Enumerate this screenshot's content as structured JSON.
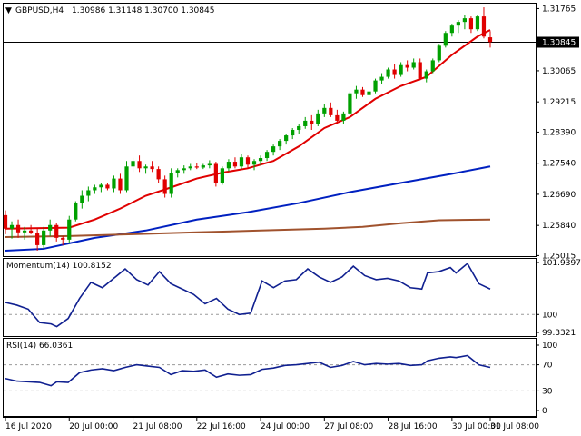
{
  "header": {
    "symbol": "GBPUSD,H4",
    "ohlc": "1.30986 1.31148 1.30700 1.30845"
  },
  "current_price_label": "1.30845",
  "colors": {
    "bull": "#00a000",
    "bear": "#e00000",
    "ma_fast": "#e00000",
    "ma_mid": "#0020c0",
    "ma_slow": "#a0522d",
    "oscillator": "#102090",
    "price_tag_bg": "#000000"
  },
  "chart_data": [
    {
      "type": "candlestick",
      "title": "GBPUSD,H4",
      "ylim": [
        1.25,
        1.319
      ],
      "y_ticks": [
        "1.31765",
        "1.30845",
        "1.30065",
        "1.29215",
        "1.28390",
        "1.27540",
        "1.26690",
        "1.25840",
        "1.25015"
      ],
      "y_tick_values": [
        1.31765,
        1.30845,
        1.30065,
        1.29215,
        1.2839,
        1.2754,
        1.2669,
        1.2584,
        1.25015
      ],
      "current_price": 1.30845,
      "candles": [
        [
          1.2612,
          1.2625,
          1.256,
          1.2575
        ],
        [
          1.2575,
          1.2595,
          1.2548,
          1.2585
        ],
        [
          1.2585,
          1.26,
          1.255,
          1.2565
        ],
        [
          1.2565,
          1.258,
          1.2545,
          1.257
        ],
        [
          1.257,
          1.2585,
          1.256,
          1.2562
        ],
        [
          1.2562,
          1.2575,
          1.2515,
          1.253
        ],
        [
          1.253,
          1.258,
          1.252,
          1.257
        ],
        [
          1.257,
          1.26,
          1.2555,
          1.2585
        ],
        [
          1.2585,
          1.259,
          1.254,
          1.255
        ],
        [
          1.255,
          1.2555,
          1.253,
          1.2545
        ],
        [
          1.2545,
          1.261,
          1.2535,
          1.26
        ],
        [
          1.26,
          1.265,
          1.2595,
          1.2645
        ],
        [
          1.2645,
          1.268,
          1.263,
          1.2665
        ],
        [
          1.2665,
          1.269,
          1.265,
          1.268
        ],
        [
          1.268,
          1.2695,
          1.267,
          1.2688
        ],
        [
          1.2688,
          1.27,
          1.2675,
          1.2695
        ],
        [
          1.2695,
          1.27,
          1.268,
          1.2685
        ],
        [
          1.2685,
          1.272,
          1.2675,
          1.2712
        ],
        [
          1.2712,
          1.2725,
          1.267,
          1.268
        ],
        [
          1.268,
          1.276,
          1.2675,
          1.2745
        ],
        [
          1.2745,
          1.277,
          1.273,
          1.276
        ],
        [
          1.276,
          1.2775,
          1.273,
          1.274
        ],
        [
          1.274,
          1.275,
          1.2725,
          1.2745
        ],
        [
          1.2745,
          1.276,
          1.273,
          1.2738
        ],
        [
          1.2738,
          1.2745,
          1.27,
          1.271
        ],
        [
          1.271,
          1.272,
          1.266,
          1.267
        ],
        [
          1.267,
          1.274,
          1.266,
          1.2728
        ],
        [
          1.2728,
          1.274,
          1.2715,
          1.2735
        ],
        [
          1.2735,
          1.2748,
          1.2725,
          1.274
        ],
        [
          1.274,
          1.2752,
          1.2735,
          1.2745
        ],
        [
          1.2745,
          1.2755,
          1.2738,
          1.2742
        ],
        [
          1.2742,
          1.2752,
          1.2738,
          1.2748
        ],
        [
          1.2748,
          1.2762,
          1.274,
          1.2752
        ],
        [
          1.2752,
          1.2758,
          1.269,
          1.27
        ],
        [
          1.27,
          1.2745,
          1.2695,
          1.274
        ],
        [
          1.274,
          1.2765,
          1.2732,
          1.2758
        ],
        [
          1.2758,
          1.277,
          1.274,
          1.2745
        ],
        [
          1.2745,
          1.2778,
          1.2738,
          1.277
        ],
        [
          1.277,
          1.2775,
          1.274,
          1.275
        ],
        [
          1.275,
          1.2765,
          1.2735,
          1.276
        ],
        [
          1.276,
          1.2775,
          1.2748,
          1.2768
        ],
        [
          1.2768,
          1.279,
          1.276,
          1.2785
        ],
        [
          1.2785,
          1.2805,
          1.2775,
          1.28
        ],
        [
          1.28,
          1.282,
          1.279,
          1.2815
        ],
        [
          1.2815,
          1.2835,
          1.2805,
          1.283
        ],
        [
          1.283,
          1.285,
          1.282,
          1.2845
        ],
        [
          1.2845,
          1.286,
          1.2835,
          1.2855
        ],
        [
          1.2855,
          1.288,
          1.2848,
          1.287
        ],
        [
          1.287,
          1.2885,
          1.2845,
          1.286
        ],
        [
          1.286,
          1.29,
          1.2855,
          1.289
        ],
        [
          1.289,
          1.2915,
          1.288,
          1.2905
        ],
        [
          1.2905,
          1.292,
          1.288,
          1.2885
        ],
        [
          1.2885,
          1.29,
          1.286,
          1.287
        ],
        [
          1.287,
          1.2895,
          1.2862,
          1.289
        ],
        [
          1.289,
          1.295,
          1.2885,
          1.2945
        ],
        [
          1.2945,
          1.2965,
          1.293,
          1.2955
        ],
        [
          1.2955,
          1.2962,
          1.2935,
          1.294
        ],
        [
          1.294,
          1.2955,
          1.293,
          1.295
        ],
        [
          1.295,
          1.2985,
          1.2945,
          1.298
        ],
        [
          1.298,
          1.3,
          1.297,
          1.299
        ],
        [
          1.299,
          1.3015,
          1.2985,
          1.301
        ],
        [
          1.301,
          1.3025,
          1.2985,
          1.2995
        ],
        [
          1.2995,
          1.303,
          1.299,
          1.3022
        ],
        [
          1.3022,
          1.3035,
          1.3005,
          1.3015
        ],
        [
          1.3015,
          1.304,
          1.301,
          1.303
        ],
        [
          1.303,
          1.304,
          1.298,
          1.2985
        ],
        [
          1.2985,
          1.301,
          1.2975,
          1.3005
        ],
        [
          1.3005,
          1.304,
          1.3,
          1.3035
        ],
        [
          1.3035,
          1.308,
          1.303,
          1.3075
        ],
        [
          1.3075,
          1.3115,
          1.307,
          1.311
        ],
        [
          1.311,
          1.3135,
          1.31,
          1.313
        ],
        [
          1.313,
          1.3145,
          1.311,
          1.314
        ],
        [
          1.314,
          1.316,
          1.312,
          1.315
        ],
        [
          1.315,
          1.3155,
          1.311,
          1.312
        ],
        [
          1.312,
          1.316,
          1.3115,
          1.3155
        ],
        [
          1.3155,
          1.318,
          1.3095,
          1.31
        ],
        [
          1.3098,
          1.3115,
          1.307,
          1.3085
        ]
      ],
      "moving_averages": [
        {
          "color_key": "ma_fast",
          "values": [
            [
              0,
              1.2575
            ],
            [
              10,
              1.2578
            ],
            [
              14,
              1.26
            ],
            [
              18,
              1.263
            ],
            [
              22,
              1.2665
            ],
            [
              26,
              1.2688
            ],
            [
              30,
              1.2712
            ],
            [
              34,
              1.2728
            ],
            [
              38,
              1.274
            ],
            [
              42,
              1.276
            ],
            [
              46,
              1.28
            ],
            [
              50,
              1.285
            ],
            [
              54,
              1.288
            ],
            [
              58,
              1.293
            ],
            [
              62,
              1.2965
            ],
            [
              66,
              1.299
            ],
            [
              70,
              1.305
            ],
            [
              74,
              1.31
            ],
            [
              76,
              1.3118
            ]
          ]
        },
        {
          "color_key": "ma_mid",
          "values": [
            [
              0,
              1.2515
            ],
            [
              6,
              1.252
            ],
            [
              14,
              1.255
            ],
            [
              22,
              1.257
            ],
            [
              30,
              1.26
            ],
            [
              38,
              1.262
            ],
            [
              46,
              1.2645
            ],
            [
              54,
              1.2675
            ],
            [
              62,
              1.27
            ],
            [
              70,
              1.2725
            ],
            [
              76,
              1.2745
            ]
          ]
        },
        {
          "color_key": "ma_slow",
          "values": [
            [
              0,
              1.2552
            ],
            [
              10,
              1.2555
            ],
            [
              20,
              1.256
            ],
            [
              30,
              1.2565
            ],
            [
              40,
              1.257
            ],
            [
              50,
              1.2575
            ],
            [
              56,
              1.258
            ],
            [
              62,
              1.259
            ],
            [
              68,
              1.2598
            ],
            [
              76,
              1.26
            ]
          ]
        }
      ],
      "x_tick_labels": [
        "16 Jul 2020",
        "20 Jul 00:00",
        "21 Jul 08:00",
        "22 Jul 16:00",
        "24 Jul 00:00",
        "27 Jul 08:00",
        "28 Jul 16:00",
        "30 Jul 00:00",
        "31 Jul 08:00"
      ],
      "x_tick_index": [
        0,
        10,
        20,
        30,
        40,
        50,
        60,
        70,
        76
      ]
    },
    {
      "type": "line",
      "title": "Momentum(14) 100.8152",
      "ylim": [
        99.3321,
        101.9397
      ],
      "y_ticks": [
        "101.9397",
        "100",
        "99.3321"
      ],
      "y_tick_values": [
        101.9397,
        100.0,
        99.3321
      ],
      "level_lines": [
        100.0
      ],
      "values": [
        [
          0,
          100.45
        ],
        [
          2,
          100.35
        ],
        [
          4,
          100.2
        ],
        [
          6,
          99.7
        ],
        [
          8,
          99.65
        ],
        [
          9,
          99.55
        ],
        [
          11,
          99.85
        ],
        [
          13,
          100.6
        ],
        [
          15,
          101.2
        ],
        [
          17,
          101.0
        ],
        [
          19,
          101.35
        ],
        [
          21,
          101.7
        ],
        [
          23,
          101.3
        ],
        [
          25,
          101.1
        ],
        [
          27,
          101.6
        ],
        [
          29,
          101.15
        ],
        [
          31,
          100.95
        ],
        [
          33,
          100.75
        ],
        [
          35,
          100.4
        ],
        [
          37,
          100.6
        ],
        [
          39,
          100.2
        ],
        [
          41,
          100.0
        ],
        [
          43,
          100.05
        ],
        [
          45,
          101.25
        ],
        [
          47,
          101.0
        ],
        [
          49,
          101.25
        ],
        [
          51,
          101.3
        ],
        [
          53,
          101.7
        ],
        [
          55,
          101.4
        ],
        [
          57,
          101.2
        ],
        [
          59,
          101.4
        ],
        [
          61,
          101.8
        ],
        [
          63,
          101.45
        ],
        [
          65,
          101.3
        ],
        [
          67,
          101.35
        ],
        [
          69,
          101.25
        ],
        [
          71,
          101.0
        ],
        [
          73,
          100.95
        ],
        [
          74,
          101.55
        ],
        [
          76,
          101.6
        ],
        [
          78,
          101.75
        ],
        [
          79,
          101.55
        ],
        [
          81,
          101.9
        ],
        [
          83,
          101.15
        ],
        [
          85,
          100.95
        ]
      ]
    },
    {
      "type": "line",
      "title": "RSI(14) 66.0361",
      "ylim": [
        0,
        100
      ],
      "y_ticks": [
        "100",
        "70",
        "30",
        "0"
      ],
      "y_tick_values": [
        100,
        70,
        30,
        0
      ],
      "level_lines": [
        70,
        30
      ],
      "values": [
        [
          0,
          49
        ],
        [
          2,
          45
        ],
        [
          4,
          44
        ],
        [
          6,
          43
        ],
        [
          8,
          38
        ],
        [
          9,
          44
        ],
        [
          11,
          43
        ],
        [
          13,
          58
        ],
        [
          15,
          62
        ],
        [
          17,
          64
        ],
        [
          19,
          61
        ],
        [
          21,
          66
        ],
        [
          23,
          70
        ],
        [
          25,
          68
        ],
        [
          27,
          66
        ],
        [
          29,
          55
        ],
        [
          31,
          61
        ],
        [
          33,
          60
        ],
        [
          35,
          62
        ],
        [
          37,
          51
        ],
        [
          39,
          56
        ],
        [
          41,
          54
        ],
        [
          43,
          55
        ],
        [
          45,
          63
        ],
        [
          47,
          65
        ],
        [
          49,
          69
        ],
        [
          51,
          70
        ],
        [
          53,
          72
        ],
        [
          55,
          74
        ],
        [
          57,
          66
        ],
        [
          59,
          69
        ],
        [
          61,
          75
        ],
        [
          63,
          70
        ],
        [
          65,
          72
        ],
        [
          67,
          71
        ],
        [
          69,
          72
        ],
        [
          71,
          69
        ],
        [
          73,
          70
        ],
        [
          74,
          76
        ],
        [
          76,
          80
        ],
        [
          78,
          82
        ],
        [
          79,
          81
        ],
        [
          81,
          84
        ],
        [
          83,
          70
        ],
        [
          85,
          66
        ]
      ]
    }
  ]
}
